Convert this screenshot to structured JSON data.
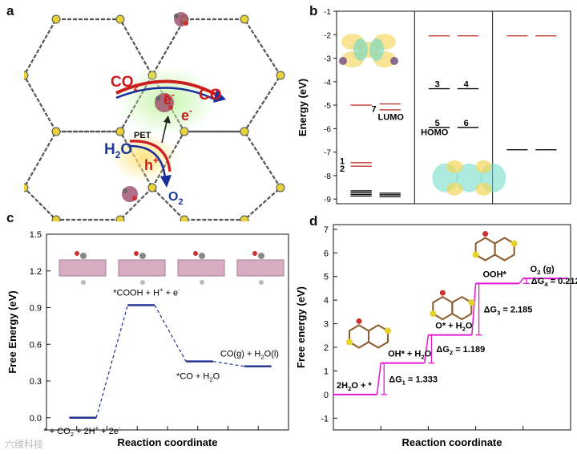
{
  "panels": {
    "a": "a",
    "b": "b",
    "c": "c",
    "d": "d"
  },
  "panel_a": {
    "labels": {
      "co2": "CO",
      "co2_sub": "2",
      "e1": "e",
      "e2": "e",
      "minus": "-",
      "co": "CO",
      "pet": "PET",
      "h2o_h": "H",
      "h2o_sub": "2",
      "h2o_o": "O",
      "hplus": "h",
      "plus": "+",
      "o2": "O",
      "o2_sub": "2"
    },
    "colors": {
      "framework": "#444444",
      "co2": "#d01818",
      "h2o": "#1a3a9c",
      "glow_green": "#b8f0a0",
      "glow_yellow": "#ffe27a"
    }
  },
  "watermark": "六维科技",
  "chart_data": [
    {
      "type": "table",
      "panel": "b",
      "ylabel": "Energy (eV)",
      "ylim": [
        -9.2,
        -1
      ],
      "yticks": [
        -1,
        -2,
        -3,
        -4,
        -5,
        -6,
        -7,
        -8,
        -9
      ],
      "columns": 3,
      "levels": [
        {
          "col": 0,
          "y": -5.0,
          "color": "#c0392b"
        },
        {
          "col": 0,
          "y": -7.45,
          "color": "#c0392b"
        },
        {
          "col": 0,
          "y": -7.6,
          "color": "#c0392b"
        },
        {
          "col": 0,
          "y": -8.65,
          "color": "#111111"
        },
        {
          "col": 0,
          "y": -8.72,
          "color": "#111111"
        },
        {
          "col": 0,
          "y": -8.8,
          "color": "#111111"
        },
        {
          "col": 0,
          "y": -8.87,
          "color": "#111111"
        },
        {
          "col": 0,
          "y": -8.75,
          "color": "#111111",
          "pos": "right"
        },
        {
          "col": 0,
          "y": -8.82,
          "color": "#111111",
          "pos": "right"
        },
        {
          "col": 0,
          "y": -8.9,
          "color": "#111111",
          "pos": "right"
        },
        {
          "col": 0,
          "y": -4.95,
          "color": "#c0392b",
          "pos": "right"
        },
        {
          "col": 0,
          "y": -5.2,
          "color": "#c0392b",
          "pos": "right"
        },
        {
          "col": 1,
          "y": -2.05,
          "color": "#c0392b"
        },
        {
          "col": 1,
          "y": -2.05,
          "color": "#c0392b",
          "pos": "right"
        },
        {
          "col": 1,
          "y": -4.3,
          "color": "#111111"
        },
        {
          "col": 1,
          "y": -4.3,
          "color": "#111111",
          "pos": "right"
        },
        {
          "col": 1,
          "y": -5.95,
          "color": "#111111"
        },
        {
          "col": 1,
          "y": -5.95,
          "color": "#111111",
          "pos": "right"
        },
        {
          "col": 2,
          "y": -2.05,
          "color": "#c0392b"
        },
        {
          "col": 2,
          "y": -2.05,
          "color": "#c0392b",
          "pos": "right"
        },
        {
          "col": 2,
          "y": -6.9,
          "color": "#111111"
        },
        {
          "col": 2,
          "y": -6.9,
          "color": "#111111",
          "pos": "right"
        }
      ],
      "level_labels": [
        {
          "text": "1",
          "near": -7.38
        },
        {
          "text": "2",
          "near": -7.7
        },
        {
          "text": "7",
          "near": -5.15
        },
        {
          "text": "LUMO",
          "near": -5.5
        },
        {
          "text": "3",
          "near": -4.1
        },
        {
          "text": "4",
          "near": -4.1
        },
        {
          "text": "5",
          "near": -5.75
        },
        {
          "text": "HOMO",
          "near": -6.15
        },
        {
          "text": "6",
          "near": -5.75
        }
      ]
    },
    {
      "type": "line",
      "panel": "c",
      "xlabel": "Reaction coordinate",
      "ylabel": "Free Energy (eV)",
      "ylim": [
        -0.1,
        1.5
      ],
      "yticks": [
        0.0,
        0.3,
        0.6,
        0.9,
        1.2,
        1.5
      ],
      "ytick_labels": [
        "0.0",
        "0.3",
        "0.6",
        "0.9",
        "1.2",
        "1.5"
      ],
      "states": [
        {
          "label": "* + CO",
          "sub": "2",
          "label2": " + 2H",
          "sup2": "+",
          "label3": " + 2e",
          "sup3": "-",
          "value": 0.0
        },
        {
          "label": "*COOH + H",
          "sup": "+",
          "label2": " + e",
          "sup2": "-",
          "value": 0.92
        },
        {
          "label": "*CO + H",
          "sub": "2",
          "label2": "O",
          "value": 0.46
        },
        {
          "label": "CO(g) + H",
          "sub": "2",
          "label2": "O(l)",
          "value": 0.42
        }
      ],
      "color": "#1f2f8f"
    },
    {
      "type": "line",
      "panel": "d",
      "xlabel": "Reaction coordinate",
      "ylabel": "Free energy (eV)",
      "ylim": [
        -1.5,
        7.2
      ],
      "yticks": [
        -1,
        0,
        1,
        2,
        3,
        4,
        5,
        6,
        7
      ],
      "states": [
        {
          "label": "2H",
          "sub": "2",
          "label2": "O + *",
          "value": 0.0
        },
        {
          "label": "OH* + H",
          "sub": "2",
          "label2": "O",
          "value": 1.333
        },
        {
          "label": "O* + H",
          "sub": "2",
          "label2": "O",
          "value": 2.522
        },
        {
          "label": "OOH*",
          "value": 4.707
        },
        {
          "label": "O",
          "sub": "2",
          "label2": " (g)",
          "value": 4.919
        }
      ],
      "deltas": [
        {
          "label": "ΔG",
          "sub": "1",
          "text": " = 1.333"
        },
        {
          "label": "ΔG",
          "sub": "2",
          "text": " = 1.189"
        },
        {
          "label": "ΔG",
          "sub": "3",
          "text": " = 2.185"
        },
        {
          "label": "ΔG",
          "sub": "4",
          "text": " = 0.212"
        }
      ],
      "color": "#e01ad0"
    }
  ]
}
